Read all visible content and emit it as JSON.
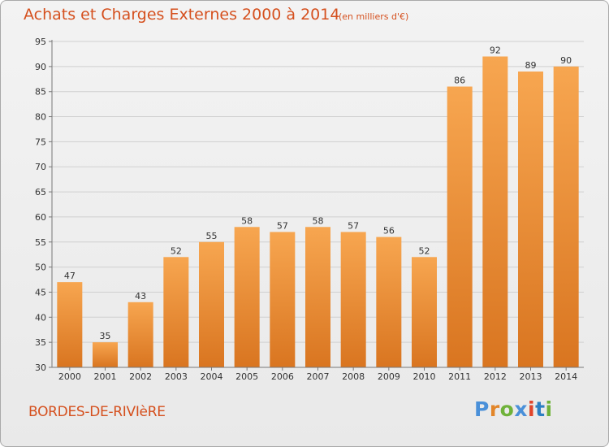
{
  "header": {
    "title": "Achats et Charges Externes 2000 à 2014",
    "subtitle": "(en milliers d'€)"
  },
  "footer": {
    "commune": "BORDES-DE-RIVIèRE",
    "logo_text": "Proxiti",
    "logo_colors": [
      "#4a90d9",
      "#e2862a",
      "#6fb23a",
      "#4a90d9",
      "#e0452b",
      "#2c7fc2",
      "#6fb23a"
    ]
  },
  "colors": {
    "title": "#d5501e",
    "bar_light": "#f7a650",
    "bar_dark": "#d97520",
    "axis_text": "#333333",
    "grid": "#d0d0d0"
  },
  "chart_data": {
    "type": "bar",
    "categories": [
      "2000",
      "2001",
      "2002",
      "2003",
      "2004",
      "2005",
      "2006",
      "2007",
      "2008",
      "2009",
      "2010",
      "2011",
      "2012",
      "2013",
      "2014"
    ],
    "values": [
      47,
      35,
      43,
      52,
      55,
      58,
      57,
      58,
      57,
      56,
      52,
      86,
      92,
      89,
      90
    ],
    "ylim": [
      30,
      95
    ],
    "yticks": [
      30,
      35,
      40,
      45,
      50,
      55,
      60,
      65,
      70,
      75,
      80,
      85,
      90,
      95
    ],
    "grid": true,
    "data_labels": true
  }
}
